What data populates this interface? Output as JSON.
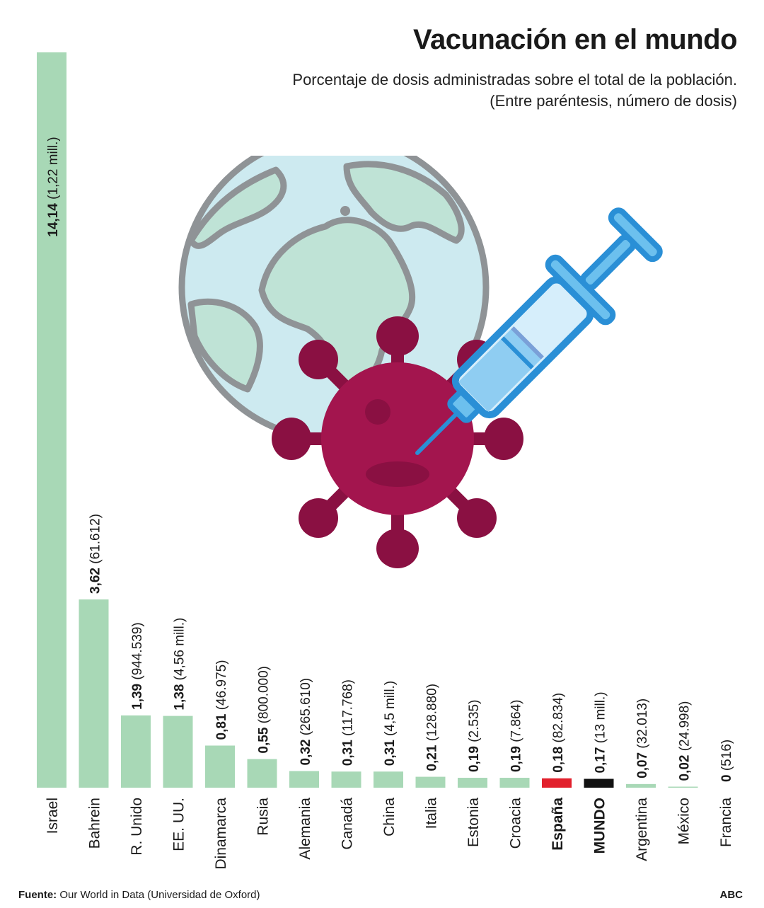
{
  "title": "Vacunación en el mundo",
  "subtitle_line1": "Porcentaje de dosis administradas sobre el total de la población.",
  "subtitle_line2": "(Entre paréntesis, número de dosis)",
  "footer": {
    "source_label": "Fuente:",
    "source_text": "Our World in Data (Universidad de Oxford)",
    "brand": "ABC"
  },
  "colors": {
    "default_bar": "#a8d8b6",
    "highlight_spain": "#e2202c",
    "highlight_world": "#111111",
    "virus": "#a3154e",
    "virus_dark": "#8a1042",
    "globe_ocean": "#cdeaf0",
    "globe_land": "#bfe3d6",
    "globe_outline": "#8f9396",
    "syringe": "#2a8fd6"
  },
  "chart_data": {
    "type": "bar",
    "title": "Vacunación en el mundo",
    "subtitle": "Porcentaje de dosis administradas sobre el total de la población.",
    "bars": [
      {
        "category": "Israel",
        "value": 14.14,
        "value_label": "14,14",
        "doses_label": "(1,22 mill.)",
        "highlight": "none"
      },
      {
        "category": "Bahrein",
        "value": 3.62,
        "value_label": "3,62",
        "doses_label": "(61.612)",
        "highlight": "none"
      },
      {
        "category": "R. Unido",
        "value": 1.39,
        "value_label": "1,39",
        "doses_label": "(944.539)",
        "highlight": "none"
      },
      {
        "category": "EE. UU.",
        "value": 1.38,
        "value_label": "1,38",
        "doses_label": "(4,56 mill.)",
        "highlight": "none"
      },
      {
        "category": "Dinamarca",
        "value": 0.81,
        "value_label": "0,81",
        "doses_label": "(46.975)",
        "highlight": "none"
      },
      {
        "category": "Rusia",
        "value": 0.55,
        "value_label": "0,55",
        "doses_label": "(800.000)",
        "highlight": "none"
      },
      {
        "category": "Alemania",
        "value": 0.32,
        "value_label": "0,32",
        "doses_label": "(265.610)",
        "highlight": "none"
      },
      {
        "category": "Canadá",
        "value": 0.31,
        "value_label": "0,31",
        "doses_label": "(117.768)",
        "highlight": "none"
      },
      {
        "category": "China",
        "value": 0.31,
        "value_label": "0,31",
        "doses_label": "(4,5 mill.)",
        "highlight": "none"
      },
      {
        "category": "Italia",
        "value": 0.21,
        "value_label": "0,21",
        "doses_label": "(128.880)",
        "highlight": "none"
      },
      {
        "category": "Estonia",
        "value": 0.19,
        "value_label": "0,19",
        "doses_label": "(2.535)",
        "highlight": "none"
      },
      {
        "category": "Croacia",
        "value": 0.19,
        "value_label": "0,19",
        "doses_label": "(7.864)",
        "highlight": "none"
      },
      {
        "category": "España",
        "value": 0.18,
        "value_label": "0,18",
        "doses_label": "(82.834)",
        "highlight": "spain"
      },
      {
        "category": "MUNDO",
        "value": 0.17,
        "value_label": "0,17",
        "doses_label": "(13 mill.)",
        "highlight": "world"
      },
      {
        "category": "Argentina",
        "value": 0.07,
        "value_label": "0,07",
        "doses_label": "(32.013)",
        "highlight": "none"
      },
      {
        "category": "México",
        "value": 0.02,
        "value_label": "0,02",
        "doses_label": "(24.998)",
        "highlight": "none"
      },
      {
        "category": "Francia",
        "value": 0,
        "value_label": "0",
        "doses_label": "(516)",
        "highlight": "none"
      }
    ],
    "ylim": [
      0,
      14.14
    ],
    "grid": false,
    "legend": "none",
    "orientation": "vertical bars, rotated labels"
  }
}
